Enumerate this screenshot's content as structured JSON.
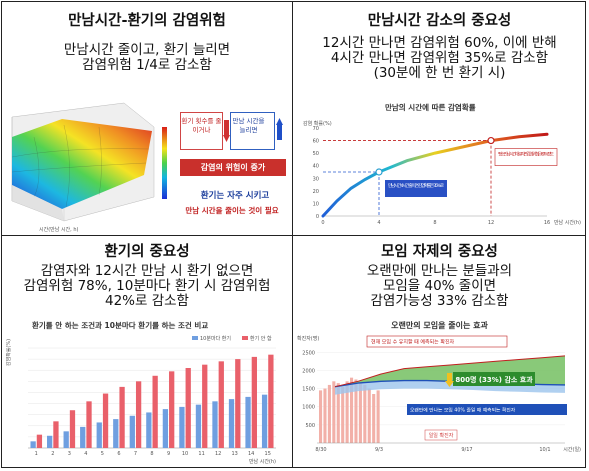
{
  "panel1": {
    "title": "만남시간-환기의 감염위험",
    "lines": [
      "만남시간 줄이고, 환기 늘리면",
      "감염위험 1/4로 감소함"
    ],
    "box_freq": "환기 횟수를 줄이거나",
    "box_time": "만남 시간을 늘리면",
    "box_risk": "감염의 위험이 증가",
    "tip1": "환기는 자주 시키고",
    "tip2": "만남 시간을 줄이는 것이 필요",
    "axis_label": "시간(만남 시간, h)"
  },
  "panel2": {
    "title": "만남시간 감소의 중요성",
    "lines": [
      "12시간 만나면 감염위험 60%, 이에 반해",
      "4시간 만나면 감염위험 35%로 감소함",
      "(30분에 한 번 환기 시)"
    ],
    "chart_title": "만남의 시간에 따른 감염확률",
    "ylabel": "감염 확률(%)",
    "xlabel": "만남 시간(h)",
    "note4": "만남 시간 4시간 줄이면 감염확률은 35%로",
    "note12": "평소 만남 시간대로라면 감염위험은 60% 정도",
    "chart_data": {
      "type": "line",
      "x": [
        0,
        1,
        2,
        3,
        4,
        6,
        8,
        10,
        12,
        14,
        16
      ],
      "y": [
        0,
        12,
        22,
        29,
        35,
        44,
        50,
        55,
        60,
        63,
        65
      ],
      "xticks": [
        0,
        4,
        8,
        12,
        16
      ],
      "yticks": [
        0,
        10,
        20,
        30,
        40,
        50,
        60,
        70
      ],
      "ylim": [
        0,
        70
      ],
      "xlim": [
        0,
        16
      ]
    }
  },
  "panel3": {
    "title": "환기의 중요성",
    "lines": [
      "감염자와 12시간 만남 시 환기 없으면",
      "감염위험 78%, 10분마다 환기 시 감염위험",
      "42%로 감소함"
    ],
    "chart_title": "환기를 안 하는 조건과 10분마다 환기를 하는 조건 비교",
    "legend_blue": "10분마다 환기",
    "legend_red": "환기 안 함",
    "ylabel": "감염확률(%)",
    "xlabel": "만남 시간(h)",
    "chart_data": {
      "type": "bar",
      "categories": [
        "1",
        "2",
        "3",
        "4",
        "5",
        "6",
        "7",
        "8",
        "9",
        "10",
        "11",
        "12",
        "13",
        "14",
        "15"
      ],
      "series": [
        {
          "name": "10분마다 환기",
          "values": [
            6,
            11,
            15,
            19,
            23,
            26,
            29,
            32,
            35,
            37,
            39,
            42,
            44,
            46,
            48
          ]
        },
        {
          "name": "환기 안 함",
          "values": [
            12,
            24,
            34,
            42,
            49,
            55,
            60,
            65,
            69,
            72,
            75,
            78,
            80,
            82,
            84
          ]
        }
      ],
      "ylim": [
        0,
        90
      ]
    }
  },
  "panel4": {
    "title": "모임 자제의 중요성",
    "lines": [
      "오랜만에 만나는 분들과의",
      "모임을 40% 줄이면",
      "감염가능성 33% 감소함"
    ],
    "chart_title": "오랜만의 모임을 줄이는 효과",
    "ylabel": "확진자(명)",
    "label_current": "현재 모임 수 유지할 때 예측되는 확진자",
    "label_effect": "800명 (33%) 감소 효과",
    "label_reduced": "오랜만에 만나는 모임 40% 줄일 때 예측되는 확진자",
    "label_daily": "일일 확진자",
    "xticks": [
      "8/30",
      "9/3",
      "9/17",
      "10/1"
    ],
    "xlabel": "시간(일)",
    "yticks": [
      "2500",
      "2000",
      "1500",
      "1000",
      "500"
    ],
    "chart_data": {
      "type": "area",
      "x": [
        0,
        1,
        2,
        3,
        4,
        5,
        6,
        7,
        8,
        9,
        10
      ],
      "series": [
        {
          "name": "현재 모임 수 유지할 때 예측되는 확진자",
          "values": [
            1550,
            1700,
            1900,
            2050,
            2100,
            2150,
            2200,
            2250,
            2300,
            2350,
            2400
          ]
        },
        {
          "name": "오랜만에 만나는 모임 40% 줄일 때 예측되는 확진자",
          "values": [
            1550,
            1650,
            1700,
            1720,
            1720,
            1700,
            1680,
            1650,
            1630,
            1610,
            1600
          ]
        }
      ],
      "daily_bars": [
        1450,
        1500,
        1600,
        1700,
        1650,
        1550,
        1700,
        1800,
        1750,
        1650,
        1600,
        1500,
        1350,
        1450
      ],
      "ylim": [
        0,
        2700
      ]
    }
  }
}
